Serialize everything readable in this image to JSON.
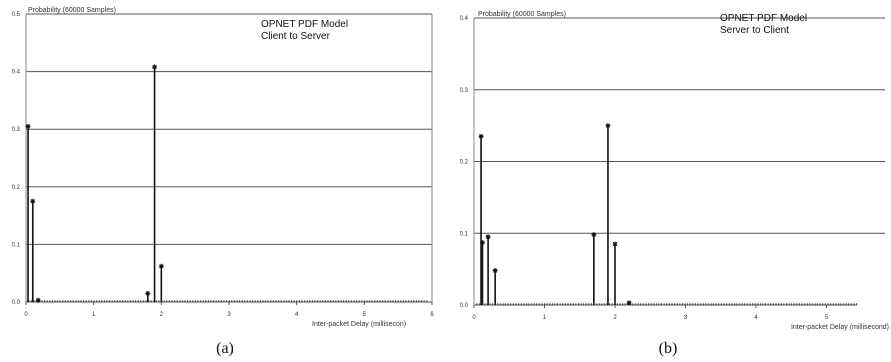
{
  "chart_data": [
    {
      "type": "bar",
      "panel_label": "(a)",
      "title_line1": "OPNET PDF Model",
      "title_line2": "Client to Server",
      "ylabel": "Probability (60000 Samples)",
      "xlabel": "Inter-packet Delay (millisecon)",
      "xlim": [
        0,
        6
      ],
      "ylim": [
        0,
        0.5
      ],
      "x_ticks": [
        "0",
        "1",
        "2",
        "3",
        "4",
        "5",
        "6"
      ],
      "y_ticks": [
        "0.0",
        "0.1",
        "0.2",
        "0.3",
        "0.4",
        "0.5"
      ],
      "grid": "horizontal",
      "stems": [
        {
          "x": 0.03,
          "y": 0.305
        },
        {
          "x": 0.1,
          "y": 0.175
        },
        {
          "x": 0.18,
          "y": 0.003
        },
        {
          "x": 1.8,
          "y": 0.015
        },
        {
          "x": 1.9,
          "y": 0.408
        },
        {
          "x": 2.0,
          "y": 0.062
        }
      ]
    },
    {
      "type": "bar",
      "panel_label": "(b)",
      "title_line1": "OPNET PDF Model",
      "title_line2": "Server to Client",
      "ylabel": "Probability (60000 Samples)",
      "xlabel": "Inter-packet Delay (millisecond)",
      "xlim": [
        0,
        5.7
      ],
      "ylim": [
        0,
        0.4
      ],
      "x_ticks": [
        "0",
        "1",
        "2",
        "3",
        "4",
        "5"
      ],
      "y_ticks": [
        "0.0",
        "0.1",
        "0.2",
        "0.3",
        "0.4"
      ],
      "grid": "horizontal",
      "stems": [
        {
          "x": 0.1,
          "y": 0.235
        },
        {
          "x": 0.12,
          "y": 0.087
        },
        {
          "x": 0.2,
          "y": 0.095
        },
        {
          "x": 0.3,
          "y": 0.048
        },
        {
          "x": 1.7,
          "y": 0.098
        },
        {
          "x": 1.9,
          "y": 0.25
        },
        {
          "x": 2.0,
          "y": 0.085
        },
        {
          "x": 2.2,
          "y": 0.003
        }
      ]
    }
  ]
}
